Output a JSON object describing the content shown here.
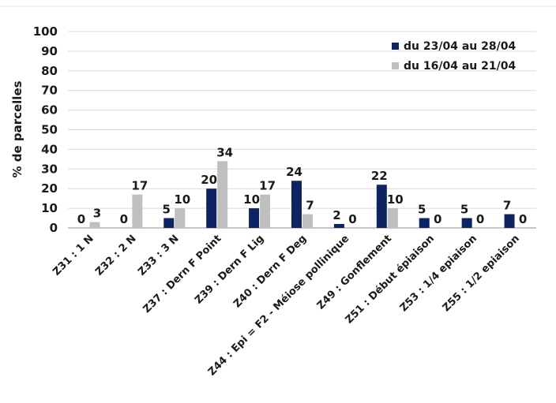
{
  "chart_data": {
    "type": "bar",
    "ylabel": "% de parcelles",
    "xlabel": "",
    "title": "",
    "ylim": [
      0,
      100
    ],
    "yticks": [
      0,
      10,
      20,
      30,
      40,
      50,
      60,
      70,
      80,
      90,
      100
    ],
    "grid": true,
    "legend_position": "top-right",
    "categories": [
      "Z31 : 1 N",
      "Z32 : 2 N",
      "Z33 : 3 N",
      "Z37 : Dern F Point",
      "Z39 : Dern F Lig",
      "Z40 : Dern F Deg",
      "Z44 : Epi = F2 - Méiose pollinique",
      "Z49 : Gonflement",
      "Z51 : Début épiaison",
      "Z53 : 1/4 epiaison",
      "Z55 : 1/2 epiaison"
    ],
    "series": [
      {
        "name": "du 23/04 au 28/04",
        "color": "#0d2460",
        "values": [
          0,
          0,
          5,
          20,
          10,
          24,
          2,
          22,
          5,
          5,
          7
        ]
      },
      {
        "name": "du 16/04 au 21/04",
        "color": "#bfbfbf",
        "values": [
          3,
          17,
          10,
          34,
          17,
          7,
          0,
          10,
          0,
          0,
          0
        ]
      }
    ]
  }
}
